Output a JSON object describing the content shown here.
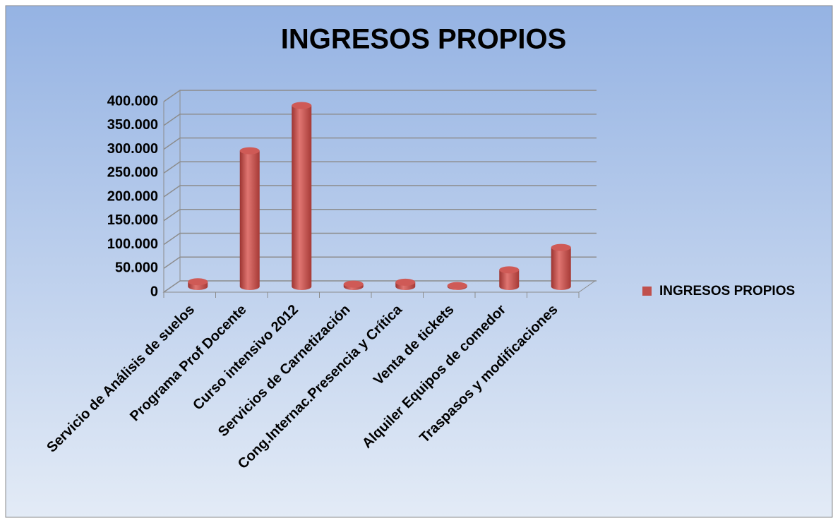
{
  "chart_data": {
    "type": "bar3d",
    "title": "INGRESOS PROPIOS",
    "categories": [
      "Servicio de Análisis de suelos",
      "Programa  Prof Docente",
      "Curso intensivo 2012",
      "Servicios de Carnetización",
      "Cong.Internac.Presencia y Crítica",
      "Venta de tickets",
      "Alquiler Equipos de comedor",
      "Traspasos y modificaciones"
    ],
    "series": [
      {
        "name": "INGRESOS PROPIOS",
        "color": "#c0504d",
        "values": [
          10000,
          285000,
          380000,
          5000,
          9000,
          2000,
          35000,
          82000
        ]
      }
    ],
    "ylim": [
      0,
      400000
    ],
    "yticks": [
      0,
      {
        "value": 50000,
        "label": "50.000"
      },
      {
        "value": 100000,
        "label": "100.000"
      },
      {
        "value": 150000,
        "label": "150.000"
      },
      {
        "value": 200000,
        "label": "200.000"
      },
      {
        "value": 250000,
        "label": "250.000"
      },
      {
        "value": 300000,
        "label": "300.000"
      },
      {
        "value": 350000,
        "label": "350.000"
      },
      {
        "value": 400000,
        "label": "400.000"
      }
    ],
    "grid": true,
    "legend": "right"
  }
}
